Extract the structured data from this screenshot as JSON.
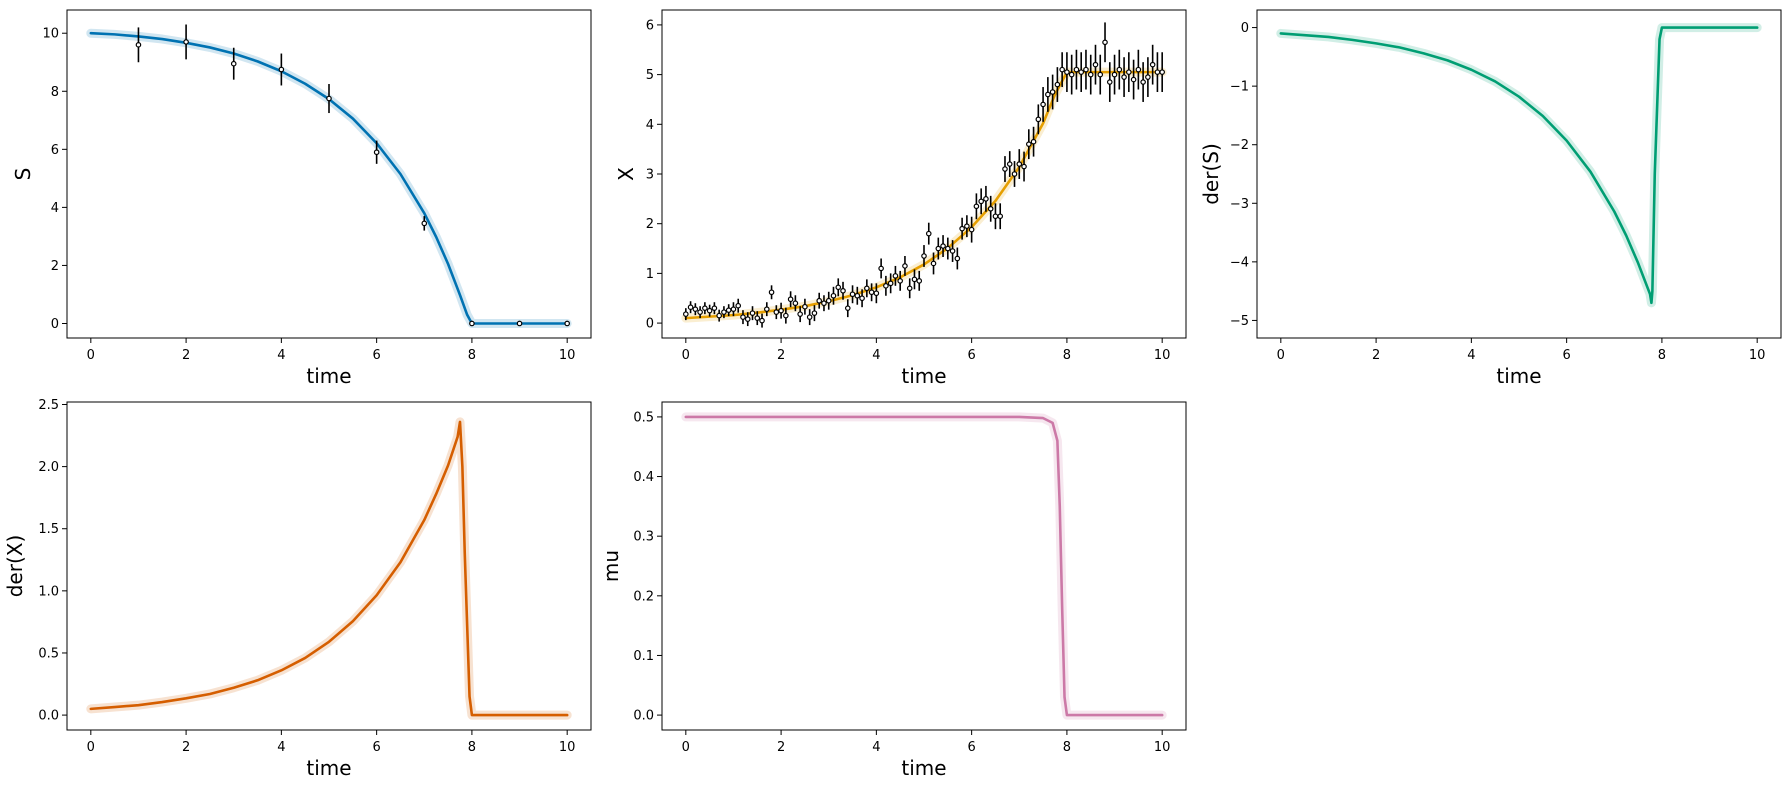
{
  "chart_data": [
    {
      "type": "line",
      "xlabel": "time",
      "ylabel": "S",
      "color": "#0072b2",
      "xlim": [
        -0.5,
        10.5
      ],
      "ylim": [
        -0.5,
        10.8
      ],
      "xticks": [
        0,
        2,
        4,
        6,
        8,
        10
      ],
      "yticks": [
        0,
        2,
        4,
        6,
        8,
        10
      ],
      "series": [
        {
          "kind": "fit",
          "x": [
            0,
            0.5,
            1,
            1.5,
            2,
            2.5,
            3,
            3.5,
            4,
            4.5,
            5,
            5.5,
            6,
            6.5,
            7,
            7.25,
            7.5,
            7.75,
            7.9,
            8.0,
            9,
            10
          ],
          "y": [
            10.0,
            9.96,
            9.89,
            9.8,
            9.67,
            9.51,
            9.3,
            9.03,
            8.69,
            8.26,
            7.73,
            7.06,
            6.21,
            5.15,
            3.8,
            2.98,
            2.05,
            0.98,
            0.3,
            0.0,
            0.0,
            0.0
          ]
        },
        {
          "kind": "observed",
          "x": [
            1,
            2,
            3,
            4,
            5,
            6,
            7,
            8,
            9,
            10
          ],
          "y": [
            9.6,
            9.7,
            8.95,
            8.75,
            7.75,
            5.9,
            3.45,
            0.0,
            0.0,
            0.0
          ],
          "err": [
            0.6,
            0.6,
            0.55,
            0.55,
            0.5,
            0.4,
            0.25,
            0.05,
            0.05,
            0.05
          ]
        }
      ]
    },
    {
      "type": "line",
      "xlabel": "time",
      "ylabel": "X",
      "color": "#e69f00",
      "xlim": [
        -0.5,
        10.5
      ],
      "ylim": [
        -0.3,
        6.3
      ],
      "xticks": [
        0,
        2,
        4,
        6,
        8,
        10
      ],
      "yticks": [
        0,
        1,
        2,
        3,
        4,
        5,
        6
      ],
      "series": [
        {
          "kind": "fit",
          "x": [
            0,
            0.5,
            1,
            1.5,
            2,
            2.5,
            3,
            3.5,
            4,
            4.5,
            5,
            5.5,
            6,
            6.5,
            7,
            7.5,
            7.75,
            8.0,
            9,
            10
          ],
          "y": [
            0.1,
            0.13,
            0.16,
            0.21,
            0.27,
            0.34,
            0.44,
            0.56,
            0.72,
            0.92,
            1.18,
            1.51,
            1.93,
            2.46,
            3.14,
            4.02,
            4.6,
            5.05,
            5.05,
            5.05
          ]
        },
        {
          "kind": "observed",
          "x": [
            0.0,
            0.1,
            0.2,
            0.3,
            0.4,
            0.5,
            0.6,
            0.7,
            0.8,
            0.9,
            1.0,
            1.1,
            1.2,
            1.3,
            1.4,
            1.5,
            1.6,
            1.7,
            1.8,
            1.9,
            2.0,
            2.1,
            2.2,
            2.3,
            2.4,
            2.5,
            2.6,
            2.7,
            2.8,
            2.9,
            3.0,
            3.1,
            3.2,
            3.3,
            3.4,
            3.5,
            3.6,
            3.7,
            3.8,
            3.9,
            4.0,
            4.1,
            4.2,
            4.3,
            4.4,
            4.5,
            4.6,
            4.7,
            4.8,
            4.9,
            5.0,
            5.1,
            5.2,
            5.3,
            5.4,
            5.5,
            5.6,
            5.7,
            5.8,
            5.9,
            6.0,
            6.1,
            6.2,
            6.3,
            6.4,
            6.5,
            6.6,
            6.7,
            6.8,
            6.9,
            7.0,
            7.1,
            7.2,
            7.3,
            7.4,
            7.5,
            7.6,
            7.7,
            7.8,
            7.9,
            8.0,
            8.1,
            8.2,
            8.3,
            8.4,
            8.5,
            8.6,
            8.7,
            8.8,
            8.9,
            9.0,
            9.1,
            9.2,
            9.3,
            9.4,
            9.5,
            9.6,
            9.7,
            9.8,
            9.9,
            10.0
          ],
          "y": [
            0.18,
            0.32,
            0.28,
            0.22,
            0.3,
            0.25,
            0.3,
            0.15,
            0.22,
            0.26,
            0.28,
            0.35,
            0.12,
            0.08,
            0.2,
            0.1,
            0.05,
            0.28,
            0.62,
            0.22,
            0.25,
            0.15,
            0.48,
            0.4,
            0.18,
            0.33,
            0.12,
            0.2,
            0.45,
            0.4,
            0.45,
            0.55,
            0.72,
            0.65,
            0.3,
            0.58,
            0.55,
            0.5,
            0.7,
            0.62,
            0.6,
            1.1,
            0.75,
            0.8,
            0.95,
            0.85,
            1.15,
            0.7,
            0.88,
            0.85,
            1.35,
            1.8,
            1.2,
            1.5,
            1.55,
            1.5,
            1.45,
            1.3,
            1.9,
            1.95,
            1.88,
            2.35,
            2.45,
            2.5,
            2.3,
            2.15,
            2.15,
            3.1,
            3.2,
            3.0,
            3.2,
            3.15,
            3.6,
            3.65,
            4.1,
            4.4,
            4.6,
            4.65,
            4.8,
            5.1,
            5.05,
            5.0,
            5.1,
            5.05,
            5.1,
            5.0,
            5.2,
            5.0,
            5.65,
            4.85,
            5.0,
            5.1,
            4.95,
            5.05,
            4.9,
            5.1,
            4.85,
            4.95,
            5.2,
            5.05,
            5.05
          ],
          "err": [
            0.12,
            0.12,
            0.12,
            0.12,
            0.12,
            0.12,
            0.12,
            0.12,
            0.12,
            0.12,
            0.14,
            0.14,
            0.14,
            0.14,
            0.14,
            0.14,
            0.14,
            0.14,
            0.14,
            0.14,
            0.16,
            0.16,
            0.16,
            0.16,
            0.16,
            0.16,
            0.16,
            0.16,
            0.16,
            0.16,
            0.18,
            0.18,
            0.18,
            0.18,
            0.18,
            0.18,
            0.18,
            0.18,
            0.18,
            0.18,
            0.2,
            0.2,
            0.2,
            0.2,
            0.2,
            0.2,
            0.2,
            0.2,
            0.2,
            0.2,
            0.22,
            0.22,
            0.22,
            0.22,
            0.22,
            0.22,
            0.22,
            0.22,
            0.22,
            0.22,
            0.26,
            0.26,
            0.26,
            0.26,
            0.26,
            0.26,
            0.26,
            0.26,
            0.26,
            0.26,
            0.3,
            0.3,
            0.3,
            0.3,
            0.3,
            0.35,
            0.35,
            0.35,
            0.35,
            0.35,
            0.4,
            0.4,
            0.4,
            0.4,
            0.4,
            0.4,
            0.4,
            0.4,
            0.4,
            0.4,
            0.4,
            0.4,
            0.4,
            0.4,
            0.4,
            0.4,
            0.4,
            0.4,
            0.4,
            0.4,
            0.4
          ]
        }
      ]
    },
    {
      "type": "line",
      "xlabel": "time",
      "ylabel": "der(S)",
      "color": "#009e73",
      "xlim": [
        -0.5,
        10.5
      ],
      "ylim": [
        -5.3,
        0.3
      ],
      "xticks": [
        0,
        2,
        4,
        6,
        8,
        10
      ],
      "yticks": [
        0,
        -1,
        -2,
        -3,
        -4,
        -5
      ],
      "series": [
        {
          "kind": "fit",
          "x": [
            0,
            0.5,
            1,
            1.5,
            2,
            2.5,
            3,
            3.5,
            4,
            4.5,
            5,
            5.5,
            6,
            6.5,
            7,
            7.25,
            7.5,
            7.75,
            7.78,
            7.8,
            7.85,
            7.95,
            8.0,
            9,
            10
          ],
          "y": [
            -0.1,
            -0.13,
            -0.16,
            -0.21,
            -0.27,
            -0.34,
            -0.44,
            -0.56,
            -0.72,
            -0.92,
            -1.18,
            -1.51,
            -1.93,
            -2.46,
            -3.14,
            -3.55,
            -4.02,
            -4.55,
            -4.7,
            -4.5,
            -2.5,
            -0.2,
            0.0,
            0.0,
            0.0
          ]
        }
      ]
    },
    {
      "type": "line",
      "xlabel": "time",
      "ylabel": "der(X)",
      "color": "#d55e00",
      "xlim": [
        -0.5,
        10.5
      ],
      "ylim": [
        -0.12,
        2.52
      ],
      "xticks": [
        0,
        2,
        4,
        6,
        8,
        10
      ],
      "yticks": [
        0.0,
        0.5,
        1.0,
        1.5,
        2.0,
        2.5
      ],
      "series": [
        {
          "kind": "fit",
          "x": [
            0,
            0.5,
            1,
            1.5,
            2,
            2.5,
            3,
            3.5,
            4,
            4.5,
            5,
            5.5,
            6,
            6.5,
            7,
            7.25,
            7.5,
            7.7,
            7.75,
            7.8,
            7.85,
            7.95,
            8.0,
            9,
            10
          ],
          "y": [
            0.05,
            0.065,
            0.08,
            0.105,
            0.135,
            0.17,
            0.22,
            0.28,
            0.36,
            0.46,
            0.59,
            0.755,
            0.965,
            1.23,
            1.57,
            1.78,
            2.01,
            2.24,
            2.36,
            2.0,
            1.3,
            0.15,
            0.0,
            0.0,
            0.0
          ]
        }
      ]
    },
    {
      "type": "line",
      "xlabel": "time",
      "ylabel": "mu",
      "color": "#cc79a7",
      "xlim": [
        -0.5,
        10.5
      ],
      "ylim": [
        -0.025,
        0.525
      ],
      "xticks": [
        0,
        2,
        4,
        6,
        8,
        10
      ],
      "yticks": [
        0.0,
        0.1,
        0.2,
        0.3,
        0.4,
        0.5
      ],
      "series": [
        {
          "kind": "fit",
          "x": [
            0,
            1,
            2,
            3,
            4,
            5,
            6,
            7,
            7.5,
            7.7,
            7.8,
            7.85,
            7.9,
            7.95,
            8.0,
            9,
            10
          ],
          "y": [
            0.5,
            0.5,
            0.5,
            0.5,
            0.5,
            0.5,
            0.5,
            0.5,
            0.498,
            0.49,
            0.46,
            0.35,
            0.18,
            0.03,
            0.0,
            0.0,
            0.0
          ]
        }
      ]
    }
  ]
}
